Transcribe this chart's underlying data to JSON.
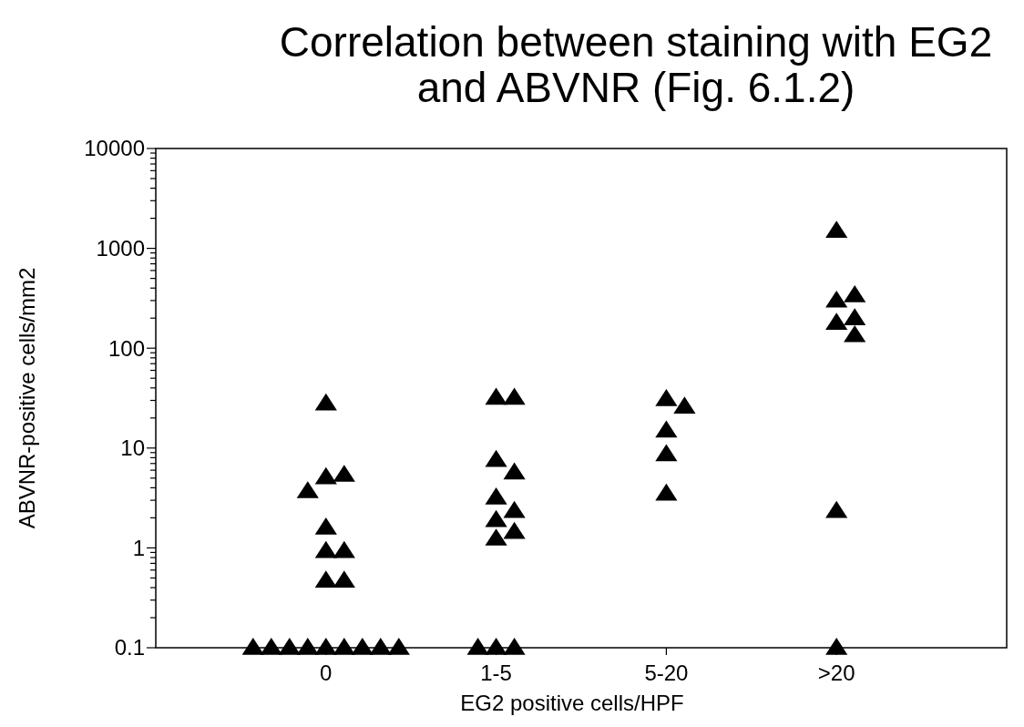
{
  "chart_data": {
    "type": "scatter",
    "title": "Correlation between staining with EG2\nand ABVNR (Fig. 6.1.2)",
    "xlabel": "EG2 positive cells/HPF",
    "ylabel": "ABVNR-positive cells/mm2",
    "log": "y",
    "marker": "triangle",
    "grid": false,
    "categories": [
      "0",
      "1-5",
      "5-20",
      ">20"
    ],
    "ylim": [
      0.1,
      10000
    ],
    "yticks": [
      0.1,
      {
        "value": 0.2,
        "label": null
      },
      {
        "value": 0.3,
        "label": null
      },
      {
        "value": 0.4,
        "label": null
      },
      {
        "value": 0.5,
        "label": null
      },
      {
        "value": 0.6,
        "label": null
      },
      {
        "value": 0.7,
        "label": null
      },
      {
        "value": 0.8,
        "label": null
      },
      {
        "value": 0.9,
        "label": null
      },
      1,
      {
        "value": 2,
        "label": null
      },
      {
        "value": 3,
        "label": null
      },
      {
        "value": 4,
        "label": null
      },
      {
        "value": 5,
        "label": null
      },
      {
        "value": 6,
        "label": null
      },
      {
        "value": 7,
        "label": null
      },
      {
        "value": 8,
        "label": null
      },
      {
        "value": 9,
        "label": null
      },
      10,
      {
        "value": 20,
        "label": null
      },
      {
        "value": 30,
        "label": null
      },
      {
        "value": 40,
        "label": null
      },
      {
        "value": 50,
        "label": null
      },
      {
        "value": 60,
        "label": null
      },
      {
        "value": 70,
        "label": null
      },
      {
        "value": 80,
        "label": null
      },
      {
        "value": 90,
        "label": null
      },
      100,
      {
        "value": 200,
        "label": null
      },
      {
        "value": 300,
        "label": null
      },
      {
        "value": 400,
        "label": null
      },
      {
        "value": 500,
        "label": null
      },
      {
        "value": 600,
        "label": null
      },
      {
        "value": 700,
        "label": null
      },
      {
        "value": 800,
        "label": null
      },
      {
        "value": 900,
        "label": null
      },
      1000,
      {
        "value": 2000,
        "label": null
      },
      {
        "value": 3000,
        "label": null
      },
      {
        "value": 4000,
        "label": null
      },
      {
        "value": 5000,
        "label": null
      },
      {
        "value": 6000,
        "label": null
      },
      {
        "value": 7000,
        "label": null
      },
      {
        "value": 8000,
        "label": null
      },
      {
        "value": 9000,
        "label": null
      },
      10000
    ],
    "series": [
      {
        "color": "#000000",
        "x": [
          "0",
          "0",
          "0",
          "0",
          "0",
          "0",
          "0",
          "0",
          "0",
          "0",
          "0",
          "0",
          "0",
          "0",
          "0",
          "0",
          "0",
          "0",
          "1-5",
          "1-5",
          "1-5",
          "1-5",
          "1-5",
          "1-5",
          "1-5",
          "1-5",
          "1-5",
          "1-5",
          "1-5",
          "1-5",
          "5-20",
          "5-20",
          "5-20",
          "5-20",
          "5-20",
          ">20",
          ">20",
          ">20",
          ">20",
          ">20",
          ">20",
          ">20",
          ">20"
        ],
        "values": [
          28,
          5.1,
          5.4,
          3.7,
          1.6,
          0.93,
          0.93,
          0.47,
          0.47,
          0.1,
          0.1,
          0.1,
          0.1,
          0.1,
          0.1,
          0.1,
          0.1,
          0.1,
          32,
          32,
          7.6,
          5.7,
          3.2,
          2.35,
          1.9,
          1.45,
          1.24,
          0.1,
          0.1,
          0.1,
          31,
          26,
          15,
          8.7,
          3.5,
          1500,
          300,
          340,
          180,
          200,
          135,
          2.35,
          0.1
        ]
      }
    ]
  }
}
